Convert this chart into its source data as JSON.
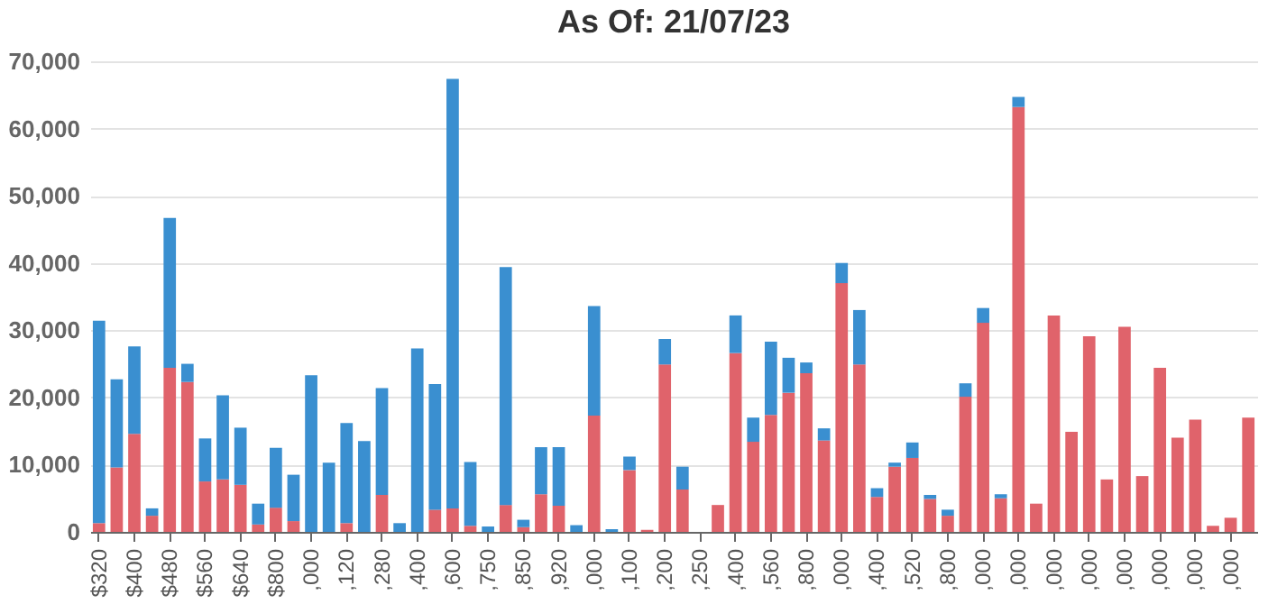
{
  "chart_data": {
    "type": "bar",
    "title": "As Of: 21/07/23",
    "stacked": true,
    "categories": [
      "$320",
      null,
      "$400",
      null,
      "$480",
      null,
      "$560",
      null,
      "$640",
      null,
      "$800",
      null,
      ",000",
      null,
      ",120",
      null,
      ",280",
      null,
      ",400",
      null,
      ",600",
      null,
      ",750",
      null,
      ",850",
      null,
      ",920",
      null,
      ",000",
      null,
      ",100",
      null,
      ",200",
      null,
      ",250",
      null,
      ",400",
      null,
      ",560",
      null,
      ",800",
      null,
      ",000",
      null,
      ",400",
      null,
      ",520",
      null,
      ",800",
      null,
      ",000",
      null,
      ",000",
      null,
      ",000",
      null,
      ",000",
      null,
      ",000",
      null,
      ",000",
      null,
      ",000",
      null,
      ",000",
      null
    ],
    "series": [
      {
        "color": "#e0636b",
        "values": [
          1300,
          9600,
          14600,
          2400,
          24400,
          22300,
          7500,
          7800,
          7000,
          1100,
          3600,
          1600,
          0,
          0,
          1300,
          0,
          5500,
          0,
          0,
          3300,
          3500,
          900,
          0,
          4000,
          700,
          5600,
          3900,
          0,
          17300,
          0,
          9200,
          300,
          24900,
          6300,
          0,
          4000,
          26600,
          13400,
          17400,
          20700,
          23600,
          13600,
          37000,
          24900,
          5200,
          9700,
          11000,
          4900,
          2400,
          20100,
          31100,
          5000,
          63200,
          4200,
          32200,
          14900,
          29100,
          7800,
          30500,
          8300,
          24400,
          14000,
          16700,
          900,
          2100,
          17000
        ]
      },
      {
        "color": "#3a8fd0",
        "values": [
          30100,
          13100,
          13000,
          1100,
          22300,
          2700,
          6400,
          12500,
          8500,
          3100,
          8900,
          6900,
          23300,
          10300,
          14900,
          13500,
          15900,
          1300,
          27300,
          18700,
          63900,
          9500,
          800,
          35400,
          1100,
          7000,
          8700,
          1000,
          16300,
          400,
          2000,
          0,
          3800,
          3400,
          0,
          0,
          5600,
          3600,
          10900,
          5200,
          1600,
          1800,
          3000,
          8100,
          1300,
          600,
          2300,
          600,
          900,
          2000,
          2200,
          600,
          1500,
          0,
          0,
          0,
          0,
          0,
          0,
          0,
          0,
          0,
          0,
          0,
          0,
          0
        ]
      }
    ],
    "ylim": [
      0,
      70000
    ],
    "yticks": [
      0,
      {
        "value": 10000,
        "label": "10,000"
      },
      {
        "value": 20000,
        "label": "20,000"
      },
      {
        "value": 30000,
        "label": "30,000"
      },
      {
        "value": 40000,
        "label": "40,000"
      },
      {
        "value": 50000,
        "label": "50,000"
      },
      {
        "value": 60000,
        "label": "60,000"
      },
      {
        "value": 70000,
        "label": "70,000"
      }
    ],
    "grid": "y"
  }
}
